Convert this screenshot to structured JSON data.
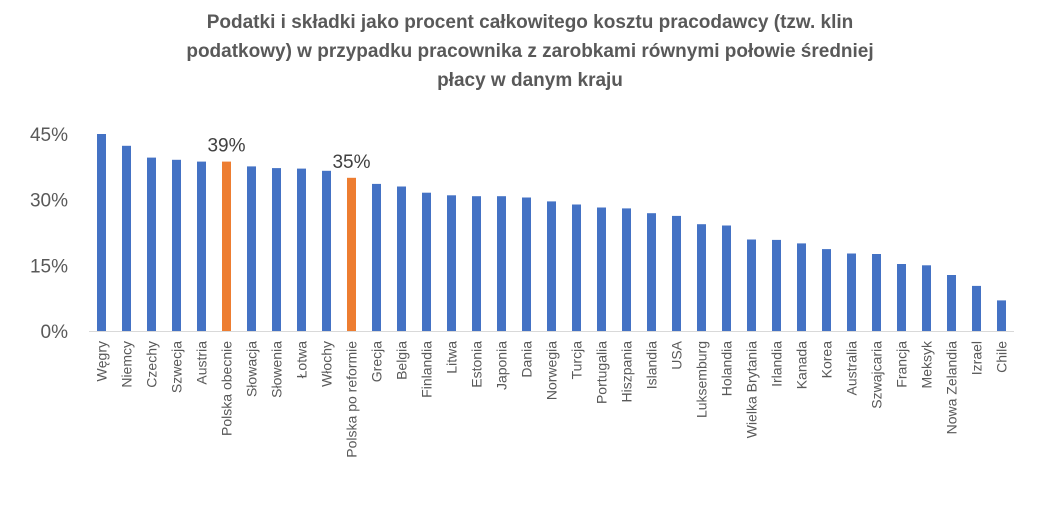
{
  "chart_data": {
    "type": "bar",
    "title_lines": [
      "Podatki i składki jako procent całkowitego kosztu pracodawcy (tzw. klin",
      "podatkowy) w przypadku pracownika z zarobkami równymi połowie średniej",
      "płacy w danym kraju"
    ],
    "categories": [
      "Węgry",
      "Niemcy",
      "Czechy",
      "Szwecja",
      "Austria",
      "Polska obecnie",
      "Słowacja",
      "Słowenia",
      "Łotwa",
      "Włochy",
      "Polska po reformie",
      "Grecja",
      "Belgia",
      "Finlandia",
      "Litwa",
      "Estonia",
      "Japonia",
      "Dania",
      "Norwegia",
      "Turcja",
      "Portugalia",
      "Hiszpania",
      "Islandia",
      "USA",
      "Luksemburg",
      "Holandia",
      "Wielka Brytania",
      "Irlandia",
      "Kanada",
      "Korea",
      "Australia",
      "Szwajcaria",
      "Francja",
      "Meksyk",
      "Nowa Zelandia",
      "Izrael",
      "Chile"
    ],
    "values": [
      45.0,
      42.3,
      39.6,
      39.1,
      38.7,
      38.7,
      37.6,
      37.2,
      37.1,
      36.6,
      35.0,
      33.6,
      33.0,
      31.6,
      31.0,
      30.8,
      30.8,
      30.5,
      29.6,
      28.9,
      28.2,
      28.0,
      26.9,
      26.3,
      24.4,
      24.1,
      20.9,
      20.8,
      20.0,
      18.7,
      17.7,
      17.6,
      15.3,
      15.0,
      12.8,
      10.3,
      7.0
    ],
    "highlight_indices": [
      5,
      10
    ],
    "data_labels": [
      {
        "index": 5,
        "text": "39%"
      },
      {
        "index": 10,
        "text": "35%"
      }
    ],
    "y_ticks": [
      "0%",
      "15%",
      "30%",
      "45%"
    ],
    "ylim": [
      0,
      45
    ],
    "grid": false,
    "colors": {
      "default": "#4472C4",
      "highlight": "#ED7D31",
      "axis": "#D9D9D9",
      "text": "#595959"
    }
  }
}
